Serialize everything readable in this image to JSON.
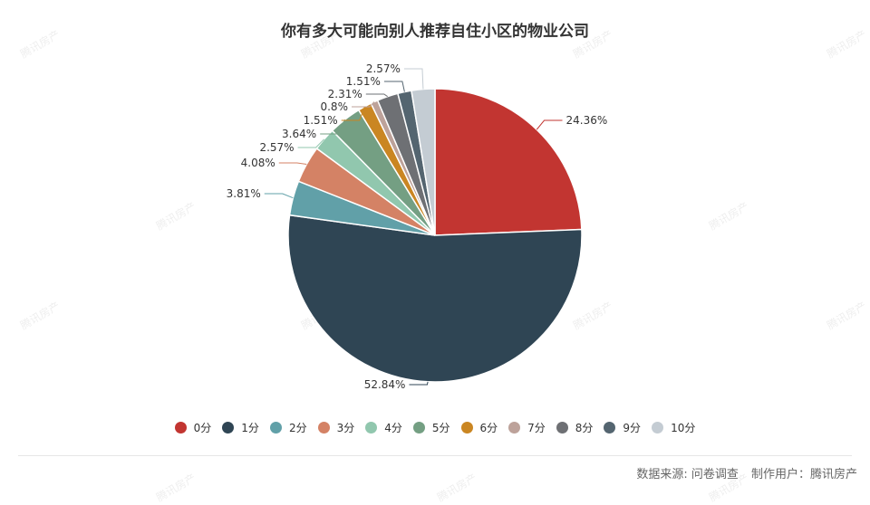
{
  "chart_data": {
    "type": "pie",
    "title": "你有多大可能向别人推荐自住小区的物业公司",
    "categories": [
      "0分",
      "1分",
      "2分",
      "3分",
      "4分",
      "5分",
      "6分",
      "7分",
      "8分",
      "9分",
      "10分"
    ],
    "values": [
      24.36,
      52.84,
      3.81,
      4.08,
      2.57,
      3.64,
      1.51,
      0.8,
      2.31,
      1.51,
      2.57
    ],
    "labels": [
      "24.36%",
      "52.84%",
      "3.81%",
      "4.08%",
      "2.57%",
      "3.64%",
      "1.51%",
      "0.8%",
      "2.31%",
      "1.51%",
      "2.57%"
    ],
    "colors": [
      "#c23531",
      "#2f4554",
      "#61a0a8",
      "#d48265",
      "#91c7ae",
      "#749f83",
      "#ca8622",
      "#bda29a",
      "#6e7074",
      "#546570",
      "#c4ccd3"
    ],
    "legend_position": "bottom"
  },
  "footer": {
    "source": "数据来源: 问卷调查",
    "maker": "制作用户：腾讯房产"
  },
  "watermark_text": "腾讯房产"
}
